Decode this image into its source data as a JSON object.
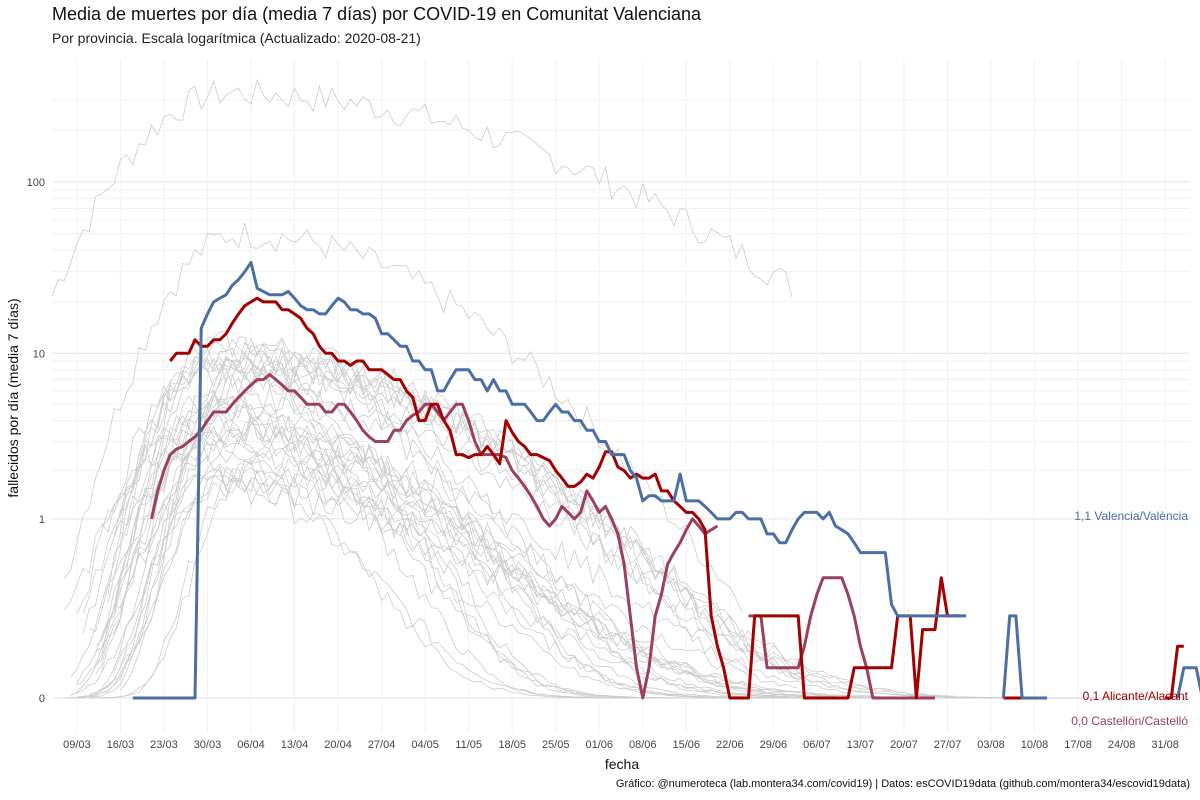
{
  "chart_data": {
    "type": "line",
    "title": "Media de muertes por día (media 7 días) por COVID-19 en Comunitat Valenciana",
    "subtitle": "Por provincia. Escala logarítmica  (Actualizado: 2020-08-21)",
    "xlabel": "fecha",
    "ylabel": "fallecidos por día (media 7 días)",
    "caption": "Gráfico: @numeroteca (lab.montera34.com/covid19) | Datos: esCOVID19data (github.com/montera34/escovid19data)",
    "y_scale": "log",
    "y_ticks": [
      "0",
      "1",
      "10",
      "100"
    ],
    "x_ticks": [
      "09/03",
      "16/03",
      "23/03",
      "30/03",
      "06/04",
      "13/04",
      "20/04",
      "27/04",
      "04/05",
      "11/05",
      "18/05",
      "25/05",
      "01/06",
      "08/06",
      "15/06",
      "22/06",
      "29/06",
      "06/07",
      "13/07",
      "20/07",
      "27/07",
      "03/08",
      "10/08",
      "17/08",
      "24/08",
      "31/08"
    ],
    "x_range": [
      "2020-03-05",
      "2020-09-04"
    ],
    "grid": true,
    "legend": "none (direct labels at line ends)",
    "colors": {
      "valencia": "#4a6fa5",
      "alicante": "#a30000",
      "castellon": "#9b4060",
      "background_lines": "#cccccc",
      "grid": "#ebebeb"
    },
    "series": [
      {
        "name": "Valencia/València",
        "end_label": "1,1 Valencia/València",
        "start": "2020-03-18",
        "values": [
          0,
          0,
          0,
          0,
          0,
          0,
          0,
          0,
          0,
          0,
          0,
          14,
          17,
          20,
          21,
          22,
          25,
          27,
          30,
          34,
          24,
          23,
          22,
          22,
          22,
          23,
          21,
          19,
          18,
          18,
          17,
          17,
          19,
          21,
          20,
          18,
          18,
          17,
          17,
          16,
          13,
          13,
          12,
          11,
          11,
          9,
          9,
          8,
          8,
          6,
          6,
          7,
          8,
          8,
          8,
          7,
          7,
          6,
          7,
          6,
          6,
          5,
          5,
          5,
          4.5,
          4,
          4,
          4.5,
          5,
          4.5,
          4.5,
          4,
          4,
          3.5,
          3.5,
          3,
          3,
          2.5,
          2.5,
          2.5,
          2,
          1.8,
          1.3,
          1.4,
          1.4,
          1.3,
          1.3,
          1.3,
          1.9,
          1.3,
          1.3,
          1.3,
          1.2,
          1.1,
          1,
          1,
          1,
          1.1,
          1.1,
          1,
          1,
          1,
          0.8,
          0.8,
          0.7,
          0.7,
          0.85,
          1,
          1.1,
          1.1,
          1.1,
          1,
          1.1,
          0.9,
          0.85,
          0.8,
          0.7,
          0.6,
          0.6,
          0.6,
          0.6,
          0.6,
          0.25,
          0.2,
          0.2,
          0.2,
          0.2,
          0.2,
          0.2,
          0.2,
          0.2,
          0.2,
          0.2,
          0.2,
          0.2,
          null,
          null,
          null,
          null,
          null,
          0,
          0.2,
          0.2,
          0,
          0,
          0,
          0,
          0,
          null,
          null,
          null,
          null,
          null,
          null,
          null,
          null,
          null,
          null,
          null,
          null,
          null,
          null,
          null,
          null,
          null,
          null,
          null,
          null,
          0,
          0.05,
          0.05,
          0.05,
          0,
          0,
          0,
          0.05,
          0.05,
          0.05,
          0.05,
          0,
          0,
          null,
          0.2,
          0.2,
          null,
          null,
          null,
          null,
          0.2,
          0.4,
          0.6,
          0.8,
          1.05
        ]
      },
      {
        "name": "Alicante/Alacant",
        "end_label": "0,1 Alicante/Alacant",
        "start": "2020-03-24",
        "values": [
          9,
          10,
          10,
          10,
          12,
          11,
          11,
          12,
          12,
          13,
          15,
          17,
          19,
          20,
          21,
          20,
          20,
          20,
          18,
          18,
          17,
          16,
          14,
          13,
          11,
          10,
          10,
          9,
          9,
          8.5,
          9,
          9,
          8,
          8,
          8,
          7.5,
          7,
          7,
          6,
          5.5,
          4,
          4,
          5,
          5,
          4,
          3.5,
          2.5,
          2.5,
          2.4,
          2.5,
          2.5,
          2.8,
          2.5,
          2.2,
          4,
          3.4,
          3,
          2.8,
          2.5,
          2.5,
          2.4,
          2.3,
          2,
          1.8,
          1.6,
          1.6,
          1.7,
          1.9,
          1.8,
          2.1,
          2.6,
          2.6,
          2.1,
          2,
          1.8,
          1.9,
          1.8,
          1.8,
          1.9,
          1.5,
          1.5,
          1.3,
          1.2,
          1.1,
          1.1,
          1,
          0.85,
          0.2,
          0.1,
          0.05,
          0,
          0,
          0,
          0,
          0.2,
          0.2,
          0.2,
          0.2,
          0.2,
          0.2,
          0.2,
          0.2,
          0,
          0,
          0,
          0,
          0,
          0,
          0,
          0,
          0.05,
          0.05,
          0.05,
          0.05,
          0.05,
          0.05,
          0.05,
          0.2,
          0.2,
          0.2,
          0,
          0.15,
          0.15,
          0.15,
          0.4,
          0.2,
          0.2,
          0.2,
          null,
          null,
          null,
          null,
          null,
          null,
          0,
          0,
          0,
          0,
          0,
          0,
          null,
          null,
          null,
          null,
          null,
          null,
          null,
          null,
          null,
          null,
          null,
          null,
          null,
          null,
          null,
          null,
          null,
          null,
          null,
          null,
          0,
          0,
          0.1,
          0.1,
          null,
          null,
          null,
          null,
          0.2,
          0.2,
          null,
          null,
          null,
          null,
          null,
          0.2,
          0.2,
          0.2,
          0.3,
          0.3,
          0.2,
          null,
          null,
          null,
          0.2,
          0.3,
          0.3,
          0.3,
          0.1
        ]
      },
      {
        "name": "Castellón/Castelló",
        "end_label": "0,0 Castellón/Castelló",
        "start": "2020-03-21",
        "values": [
          1,
          1.5,
          2,
          2.5,
          2.7,
          2.8,
          3,
          3.2,
          3.5,
          4,
          4.5,
          4.5,
          4.5,
          5,
          5.5,
          6,
          6.5,
          7,
          7,
          7.5,
          7,
          6.5,
          6,
          6,
          5.5,
          5,
          5,
          5,
          4.5,
          4.5,
          5,
          5,
          4.5,
          4,
          3.5,
          3.2,
          3,
          3,
          3,
          3.5,
          3.5,
          4,
          4.3,
          4.5,
          5,
          5,
          4.5,
          4,
          4.5,
          5,
          5,
          4,
          3,
          2.5,
          2.5,
          2.5,
          2.5,
          2.4,
          2,
          1.8,
          1.6,
          1.4,
          1.2,
          1,
          0.9,
          1,
          1.2,
          1.1,
          1,
          1.1,
          1.5,
          1.3,
          1.1,
          1.2,
          1,
          0.8,
          0.5,
          0.2,
          0.05,
          0,
          0.05,
          0.2,
          0.3,
          0.5,
          0.6,
          0.7,
          0.85,
          1,
          0.9,
          0.8,
          0.85,
          0.9,
          null,
          null,
          null,
          null,
          0.2,
          0.2,
          0.2,
          0.05,
          0.05,
          0.05,
          0.05,
          0.05,
          0.05,
          0.1,
          0.2,
          0.3,
          0.4,
          0.4,
          0.4,
          0.4,
          0.3,
          0.2,
          0.1,
          0.05,
          0,
          0,
          0,
          0,
          0,
          0,
          0,
          0,
          0,
          0,
          0,
          null,
          null,
          null,
          null,
          null,
          null,
          null,
          null,
          null,
          null,
          null,
          null,
          null,
          null,
          null,
          null,
          null,
          null,
          null,
          null,
          null,
          null,
          null,
          null,
          null,
          null,
          null,
          null,
          null,
          null,
          null,
          null,
          null,
          null,
          null,
          null,
          null,
          null,
          null,
          null,
          null,
          null,
          null,
          null,
          null,
          null,
          null,
          null,
          null,
          null,
          null,
          null,
          null,
          null,
          null,
          null,
          null,
          null,
          null,
          null,
          0
        ]
      }
    ]
  }
}
